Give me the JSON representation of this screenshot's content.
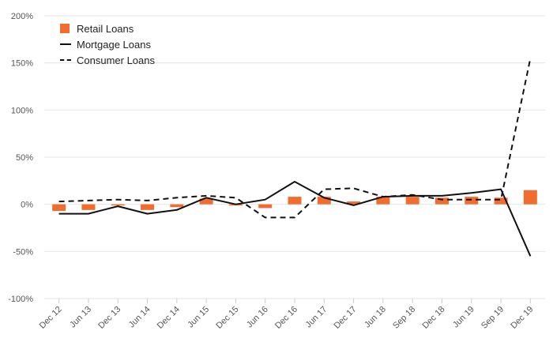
{
  "chart_data": {
    "type": "bar",
    "categories": [
      "Dec 12",
      "Jun 13",
      "Dec 13",
      "Jun 14",
      "Dec 14",
      "Jun 15",
      "Dec 15",
      "Jun 16",
      "Dec 16",
      "Jun 17",
      "Dec 17",
      "Jun 18",
      "Sep 18",
      "Dec 18",
      "Jun 19",
      "Sep 19",
      "Dec 19"
    ],
    "series": [
      {
        "name": "Retail Loans",
        "kind": "bar",
        "color": "#f26d2d",
        "values": [
          -7,
          -6,
          -1,
          -6,
          -3,
          6,
          0,
          -4,
          8,
          8,
          3,
          8,
          8,
          7,
          8,
          7,
          15
        ]
      },
      {
        "name": "Mortgage Loans",
        "kind": "line",
        "style": "solid",
        "color": "#111111",
        "values": [
          -10,
          -10,
          -2,
          -10,
          -6,
          7,
          0,
          5,
          24,
          7,
          -1,
          8,
          9,
          9,
          12,
          16,
          -55
        ]
      },
      {
        "name": "Consumer Loans",
        "kind": "line",
        "style": "dashed",
        "color": "#111111",
        "values": [
          3,
          4,
          5,
          4,
          7,
          9,
          7,
          -14,
          -14,
          16,
          17,
          8,
          10,
          5,
          5,
          5,
          155
        ]
      }
    ],
    "yticks": [
      "-100%",
      "-50%",
      "0%",
      "50%",
      "100%",
      "150%",
      "200%"
    ],
    "ylim": [
      -100,
      200
    ],
    "grid": true,
    "legend_position": "top-left"
  }
}
